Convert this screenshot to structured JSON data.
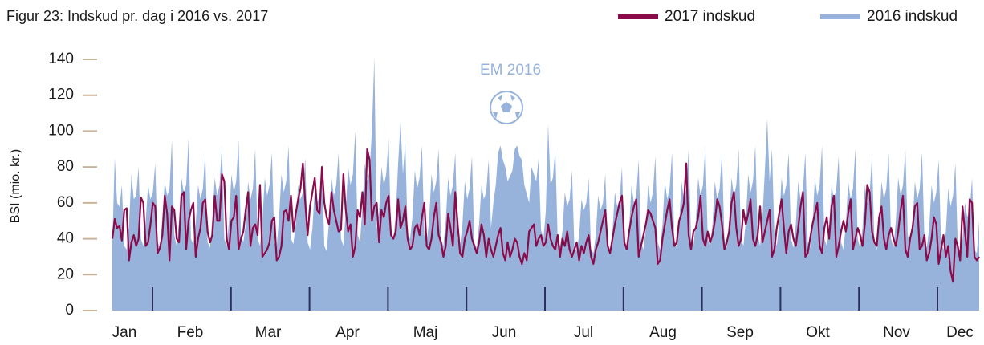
{
  "chart_data": {
    "type": "line",
    "title": "Figur 23: Indskud pr. dag i 2016 vs. 2017",
    "ylabel": "BSI (mio. kr.)",
    "annotation": "EM 2016",
    "months": [
      "Jan",
      "Feb",
      "Mar",
      "Apr",
      "Maj",
      "Jun",
      "Jul",
      "Aug",
      "Sep",
      "Okt",
      "Nov",
      "Dec"
    ],
    "ylim": [
      0,
      140
    ],
    "yticks": [
      0,
      20,
      40,
      60,
      80,
      100,
      120,
      140
    ],
    "grid": false,
    "legend": "top-right",
    "series": [
      {
        "name": "2017 indskud",
        "type": "line",
        "color": "#8b0a4a",
        "values": [
          40,
          51,
          46,
          47,
          39,
          56,
          57,
          28,
          38,
          42,
          36,
          40,
          63,
          60,
          36,
          38,
          48,
          60,
          58,
          32,
          35,
          42,
          64,
          54,
          28,
          58,
          56,
          40,
          38,
          64,
          66,
          34,
          50,
          56,
          60,
          30,
          40,
          46,
          60,
          62,
          44,
          38,
          42,
          64,
          50,
          50,
          76,
          72,
          40,
          34,
          50,
          52,
          64,
          34,
          40,
          44,
          56,
          66,
          36,
          46,
          48,
          42,
          70,
          30,
          32,
          34,
          38,
          50,
          52,
          28,
          30,
          36,
          55,
          56,
          50,
          64,
          44,
          54,
          62,
          68,
          82,
          60,
          42,
          58,
          66,
          74,
          56,
          54,
          80,
          60,
          52,
          48,
          66,
          56,
          50,
          44,
          45,
          76,
          56,
          44,
          48,
          30,
          36,
          56,
          52,
          66,
          48,
          90,
          84,
          50,
          58,
          60,
          38,
          56,
          52,
          60,
          64,
          42,
          40,
          44,
          62,
          46,
          50,
          58,
          40,
          34,
          36,
          46,
          48,
          42,
          52,
          60,
          36,
          34,
          40,
          52,
          60,
          42,
          38,
          30,
          36,
          54,
          46,
          36,
          66,
          48,
          32,
          30,
          40,
          44,
          50,
          40,
          36,
          32,
          38,
          48,
          42,
          30,
          40,
          34,
          30,
          36,
          42,
          46,
          32,
          28,
          38,
          30,
          34,
          40,
          38,
          30,
          26,
          32,
          28,
          44,
          46,
          48,
          36,
          40,
          42,
          36,
          38,
          48,
          40,
          36,
          34,
          42,
          30,
          40,
          36,
          44,
          34,
          30,
          34,
          38,
          28,
          36,
          32,
          38,
          42,
          30,
          26,
          34,
          38,
          44,
          50,
          56,
          36,
          32,
          40,
          48,
          54,
          60,
          64,
          38,
          34,
          44,
          52,
          58,
          62,
          30,
          36,
          42,
          48,
          56,
          54,
          50,
          46,
          26,
          28,
          40,
          48,
          56,
          62,
          46,
          36,
          38,
          50,
          54,
          60,
          82,
          42,
          34,
          44,
          46,
          52,
          64,
          40,
          36,
          44,
          38,
          42,
          50,
          62,
          58,
          48,
          34,
          38,
          44,
          60,
          66,
          46,
          36,
          40,
          56,
          48,
          54,
          62,
          40,
          36,
          42,
          58,
          38,
          44,
          50,
          56,
          30,
          34,
          46,
          54,
          62,
          46,
          32,
          44,
          48,
          40,
          36,
          46,
          58,
          66,
          30,
          32,
          40,
          48,
          54,
          60,
          36,
          32,
          46,
          52,
          40,
          58,
          64,
          30,
          36,
          44,
          50,
          44,
          54,
          62,
          34,
          40,
          46,
          42,
          36,
          48,
          70,
          66,
          44,
          38,
          36,
          52,
          58,
          40,
          34,
          42,
          46,
          40,
          36,
          44,
          56,
          64,
          34,
          30,
          40,
          46,
          58,
          60,
          34,
          36,
          42,
          28,
          32,
          40,
          52,
          48,
          26,
          34,
          42,
          30,
          36,
          22,
          16,
          40,
          36,
          28,
          58,
          44,
          30,
          62,
          60,
          30,
          28,
          30
        ]
      },
      {
        "name": "2016 indskud",
        "type": "area",
        "color": "#97b3dc",
        "values": [
          38,
          85,
          60,
          58,
          70,
          36,
          34,
          48,
          76,
          62,
          64,
          80,
          40,
          36,
          50,
          70,
          62,
          66,
          82,
          38,
          35,
          52,
          72,
          64,
          68,
          95,
          42,
          36,
          50,
          74,
          66,
          70,
          96,
          40,
          37,
          48,
          70,
          62,
          68,
          88,
          38,
          35,
          52,
          74,
          64,
          70,
          92,
          40,
          36,
          50,
          76,
          66,
          72,
          95,
          42,
          38,
          48,
          72,
          62,
          68,
          90,
          40,
          36,
          50,
          74,
          64,
          70,
          88,
          38,
          35,
          52,
          76,
          66,
          72,
          92,
          40,
          37,
          48,
          70,
          62,
          66,
          85,
          38,
          34,
          46,
          68,
          60,
          64,
          82,
          36,
          33,
          50,
          74,
          64,
          70,
          88,
          40,
          36,
          56,
          80,
          70,
          76,
          100,
          42,
          38,
          58,
          82,
          72,
          78,
          100,
          141,
          45,
          55,
          80,
          70,
          76,
          96,
          44,
          40,
          54,
          82,
          105,
          76,
          94,
          42,
          40,
          52,
          78,
          68,
          74,
          92,
          42,
          38,
          50,
          76,
          66,
          72,
          90,
          40,
          36,
          50,
          74,
          64,
          70,
          88,
          40,
          36,
          48,
          72,
          62,
          68,
          86,
          38,
          35,
          48,
          70,
          62,
          66,
          84,
          46,
          60,
          70,
          88,
          92,
          84,
          80,
          72,
          75,
          78,
          90,
          92,
          86,
          84,
          70,
          65,
          60,
          80,
          76,
          72,
          85,
          45,
          40,
          55,
          104,
          70,
          74,
          90,
          40,
          36,
          44,
          66,
          58,
          62,
          78,
          36,
          33,
          42,
          62,
          56,
          60,
          74,
          34,
          32,
          42,
          64,
          56,
          60,
          76,
          35,
          32,
          44,
          66,
          58,
          62,
          80,
          36,
          33,
          46,
          70,
          60,
          64,
          84,
          38,
          34,
          46,
          70,
          60,
          66,
          86,
          38,
          34,
          48,
          72,
          62,
          68,
          88,
          38,
          35,
          48,
          72,
          62,
          68,
          90,
          40,
          36,
          50,
          74,
          64,
          70,
          92,
          40,
          36,
          48,
          72,
          62,
          68,
          88,
          40,
          35,
          50,
          74,
          64,
          70,
          90,
          40,
          36,
          50,
          76,
          66,
          72,
          92,
          42,
          36,
          52,
          78,
          107,
          72,
          90,
          42,
          36,
          48,
          74,
          64,
          70,
          88,
          40,
          35,
          48,
          72,
          62,
          68,
          88,
          38,
          35,
          48,
          74,
          64,
          70,
          92,
          40,
          36,
          46,
          70,
          62,
          68,
          86,
          38,
          34,
          48,
          72,
          62,
          68,
          90,
          40,
          35,
          46,
          70,
          60,
          66,
          86,
          38,
          34,
          48,
          72,
          62,
          68,
          88,
          40,
          35,
          50,
          74,
          64,
          70,
          90,
          42,
          36,
          48,
          72,
          62,
          68,
          88,
          40,
          35,
          46,
          70,
          60,
          66,
          84,
          38,
          34,
          44,
          68,
          58,
          64,
          82,
          36,
          33,
          40,
          60,
          52,
          56,
          74,
          34,
          32,
          50
        ]
      }
    ]
  }
}
